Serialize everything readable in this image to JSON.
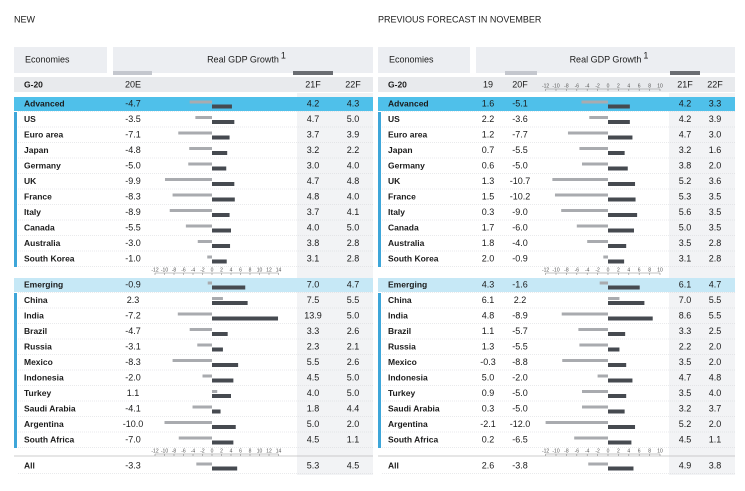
{
  "palette": {
    "g": "#22976a",
    "r": "#d42a2a",
    "k": "#1b1b1b"
  },
  "panels": [
    {
      "title": "NEW",
      "economies_header": "Economies",
      "header": "Real GDP Growth",
      "footnote_mark": "1",
      "group_label": "G-20",
      "columns": [
        "20E",
        "21F",
        "22F"
      ],
      "bar_columns": [
        0,
        1
      ],
      "axis_ticks": [
        -12,
        -10,
        -8,
        -6,
        -4,
        -2,
        0,
        2,
        4,
        6,
        8,
        10,
        12,
        14
      ],
      "groups": [
        {
          "name": "Advanced",
          "values": [
            -4.7,
            4.2,
            4.3
          ],
          "colors": "gkg",
          "members": [
            {
              "name": "US",
              "values": [
                -3.5,
                4.7,
                5.0
              ],
              "colors": "kgg",
              "value_labels": [
                null,
                null,
                "5.0"
              ]
            },
            {
              "name": "Euro area",
              "values": [
                -7.1,
                3.7,
                3.9
              ],
              "colors": "grg"
            },
            {
              "name": "Japan",
              "values": [
                -4.8,
                3.2,
                2.2
              ],
              "colors": "gkg"
            },
            {
              "name": "Germany",
              "values": [
                -5.0,
                3.0,
                4.0
              ],
              "colors": "krg",
              "value_labels": [
                "-5.0",
                "3.0",
                "4.0"
              ]
            },
            {
              "name": "UK",
              "values": [
                -9.9,
                4.7,
                4.8
              ],
              "colors": "grg"
            },
            {
              "name": "France",
              "values": [
                -8.3,
                4.8,
                4.0
              ],
              "colors": "grg",
              "value_labels": [
                null,
                null,
                "4.0"
              ]
            },
            {
              "name": "Italy",
              "values": [
                -8.9,
                3.7,
                4.1
              ],
              "colors": "krg"
            },
            {
              "name": "Canada",
              "values": [
                -5.5,
                4.0,
                5.0
              ],
              "colors": "grg",
              "value_labels": [
                null,
                "4.0",
                "5.0"
              ]
            },
            {
              "name": "Australia",
              "values": [
                -3.0,
                3.8,
                2.8
              ],
              "colors": "gkk",
              "value_labels": [
                "-3.0",
                null,
                null
              ]
            },
            {
              "name": "South Korea",
              "values": [
                -1.0,
                3.1,
                2.8
              ],
              "colors": "kkk",
              "value_labels": [
                "-1.0",
                null,
                null
              ]
            }
          ]
        },
        {
          "name": "Emerging",
          "values": [
            -0.9,
            7.0,
            4.7
          ],
          "colors": "ggk",
          "value_labels": [
            null,
            "7.0",
            null
          ],
          "members": [
            {
              "name": "China",
              "values": [
                2.3,
                7.5,
                5.5
              ],
              "colors": "kgk"
            },
            {
              "name": "India",
              "values": [
                -7.2,
                13.9,
                5.0
              ],
              "colors": "ggr",
              "value_labels": [
                null,
                null,
                "5.0"
              ]
            },
            {
              "name": "Brazil",
              "values": [
                -4.7,
                3.3,
                2.6
              ],
              "colors": "gkg"
            },
            {
              "name": "Russia",
              "values": [
                -3.1,
                2.3,
                2.1
              ],
              "colors": "gkg"
            },
            {
              "name": "Mexico",
              "values": [
                -8.3,
                5.5,
                2.6
              ],
              "colors": "ggg"
            },
            {
              "name": "Indonesia",
              "values": [
                -2.0,
                4.5,
                5.0
              ],
              "colors": "kkg",
              "value_labels": [
                "-2.0",
                null,
                "5.0"
              ]
            },
            {
              "name": "Turkey",
              "values": [
                1.1,
                4.0,
                5.0
              ],
              "colors": "ggg",
              "value_labels": [
                null,
                "4.0",
                "5.0"
              ]
            },
            {
              "name": "Saudi Arabia",
              "values": [
                -4.1,
                1.8,
                4.4
              ],
              "colors": "grg"
            },
            {
              "name": "Argentina",
              "values": [
                -10.0,
                5.0,
                2.0
              ],
              "colors": "gkk",
              "value_labels": [
                "-10.0",
                "5.0",
                "2.0"
              ]
            },
            {
              "name": "South Africa",
              "values": [
                -7.0,
                4.5,
                1.1
              ],
              "colors": "rkk",
              "value_labels": [
                "-7.0",
                null,
                null
              ]
            }
          ]
        }
      ],
      "total": {
        "name": "All",
        "values": [
          -3.3,
          5.3,
          4.5
        ],
        "colors": "ggg"
      }
    },
    {
      "title": "PREVIOUS FORECAST IN NOVEMBER",
      "economies_header": "Economies",
      "header": "Real GDP Growth",
      "footnote_mark": "1",
      "group_label": "G-20",
      "columns": [
        "19",
        "20F",
        "21F",
        "22F"
      ],
      "bar_columns": [
        1,
        2
      ],
      "axis_ticks": [
        -12,
        -10,
        -8,
        -6,
        -4,
        -2,
        0,
        2,
        4,
        6,
        8,
        10
      ],
      "groups": [
        {
          "name": "Advanced",
          "values": [
            1.6,
            -5.1,
            4.2,
            3.3
          ],
          "colors": "kgrk",
          "members": [
            {
              "name": "US",
              "values": [
                2.2,
                -3.6,
                4.2,
                3.9
              ],
              "colors": "kgkk"
            },
            {
              "name": "Euro area",
              "values": [
                1.2,
                -7.7,
                4.7,
                3.0
              ],
              "colors": "kgrk",
              "value_labels": [
                null,
                null,
                null,
                "3.0"
              ]
            },
            {
              "name": "Japan",
              "values": [
                0.7,
                -5.5,
                3.2,
                1.6
              ],
              "colors": "kgkk"
            },
            {
              "name": "Germany",
              "values": [
                0.6,
                -5.0,
                3.8,
                2.0
              ],
              "colors": "kgrk",
              "value_labels": [
                null,
                "-5.0",
                null,
                "2.0"
              ]
            },
            {
              "name": "UK",
              "values": [
                1.3,
                -10.7,
                5.2,
                3.6
              ],
              "colors": "krrk"
            },
            {
              "name": "France",
              "values": [
                1.5,
                -10.2,
                5.3,
                3.5
              ],
              "colors": "kkrk"
            },
            {
              "name": "Italy",
              "values": [
                0.3,
                -9.0,
                5.6,
                3.5
              ],
              "colors": "kgrk",
              "value_labels": [
                null,
                "-9.0",
                null,
                null
              ]
            },
            {
              "name": "Canada",
              "values": [
                1.7,
                -6.0,
                5.0,
                3.5
              ],
              "colors": "kgrk",
              "value_labels": [
                null,
                "-6.0",
                "5.0",
                null
              ]
            },
            {
              "name": "Australia",
              "values": [
                1.8,
                -4.0,
                3.5,
                2.8
              ],
              "colors": "kgrk",
              "value_labels": [
                null,
                "-4.0",
                null,
                null
              ]
            },
            {
              "name": "South Korea",
              "values": [
                2.0,
                -0.9,
                3.1,
                2.8
              ],
              "colors": "kkkk",
              "value_labels": [
                "2.0",
                null,
                null,
                null
              ]
            }
          ]
        },
        {
          "name": "Emerging",
          "values": [
            4.3,
            -1.6,
            6.1,
            4.7
          ],
          "colors": "kgkk",
          "members": [
            {
              "name": "China",
              "values": [
                6.1,
                2.2,
                7.0,
                5.5
              ],
              "colors": "kgkk",
              "value_labels": [
                null,
                null,
                "7.0",
                null
              ]
            },
            {
              "name": "India",
              "values": [
                4.8,
                -8.9,
                8.6,
                5.5
              ],
              "colors": "kggk"
            },
            {
              "name": "Brazil",
              "values": [
                1.1,
                -5.7,
                3.3,
                2.5
              ],
              "colors": "kgrk"
            },
            {
              "name": "Russia",
              "values": [
                1.3,
                -5.5,
                2.2,
                2.0
              ],
              "colors": "kkkk",
              "value_labels": [
                null,
                null,
                null,
                "2.0"
              ]
            },
            {
              "name": "Mexico",
              "values": [
                -0.3,
                -8.8,
                3.5,
                2.0
              ],
              "colors": "kgkk",
              "value_labels": [
                null,
                null,
                null,
                "2.0"
              ]
            },
            {
              "name": "Indonesia",
              "values": [
                5.0,
                -2.0,
                4.7,
                4.8
              ],
              "colors": "kgrk",
              "value_labels": [
                "5.0",
                "-2.0",
                null,
                null
              ]
            },
            {
              "name": "Turkey",
              "values": [
                0.9,
                -5.0,
                3.5,
                4.0
              ],
              "colors": "kkkk",
              "value_labels": [
                null,
                "-5.0",
                null,
                "4.0"
              ]
            },
            {
              "name": "Saudi Arabia",
              "values": [
                0.3,
                -5.0,
                3.2,
                3.7
              ],
              "colors": "krgk",
              "value_labels": [
                null,
                "-5.0",
                null,
                null
              ]
            },
            {
              "name": "Argentina",
              "values": [
                -2.1,
                -12.0,
                5.2,
                2.0
              ],
              "colors": "kkkk",
              "value_labels": [
                null,
                "-12.0",
                null,
                "2.0"
              ]
            },
            {
              "name": "South Africa",
              "values": [
                0.2,
                -6.5,
                4.5,
                1.1
              ],
              "colors": "kkkk"
            }
          ]
        }
      ],
      "total": {
        "name": "All",
        "values": [
          2.6,
          -3.8,
          4.9,
          3.8
        ],
        "colors": "kgrk"
      }
    }
  ]
}
